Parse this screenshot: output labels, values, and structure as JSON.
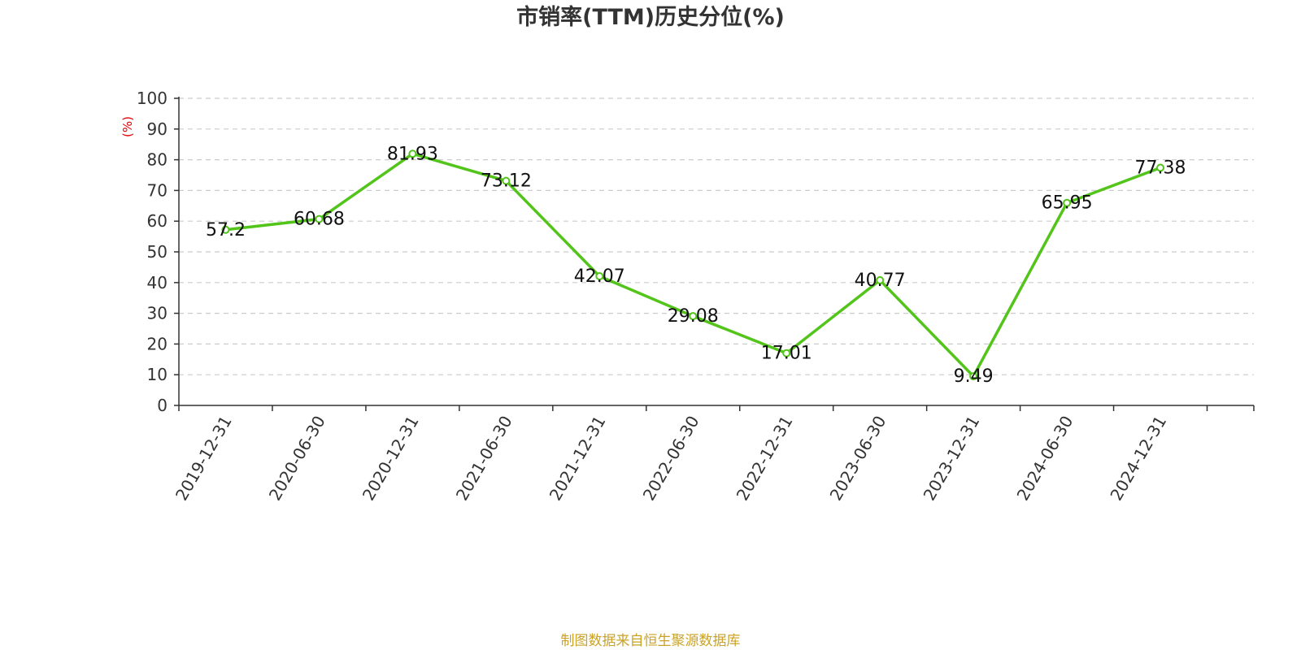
{
  "chart_data": {
    "type": "line",
    "title": "市销率(TTM)历史分位(%)",
    "ylabel": "(%)",
    "xlabel": "",
    "ylim": [
      0,
      100
    ],
    "y_ticks": [
      0,
      10,
      20,
      30,
      40,
      50,
      60,
      70,
      80,
      90,
      100
    ],
    "grid": true,
    "categories": [
      "2019-12-31",
      "2020-06-30",
      "2020-12-31",
      "2021-06-30",
      "2021-12-31",
      "2022-06-30",
      "2022-12-31",
      "2023-06-30",
      "2023-12-31",
      "2024-06-30",
      "2024-12-31"
    ],
    "series": [
      {
        "values": [
          57.2,
          60.68,
          81.93,
          73.12,
          42.07,
          29.08,
          17.01,
          40.77,
          9.49,
          65.95,
          77.38
        ],
        "data_labels": [
          "57.2",
          "60.68",
          "81.93",
          "73.12",
          "42.07",
          "29.08",
          "17.01",
          "40.77",
          "9.49",
          "65.95",
          "77.38"
        ],
        "color": "#52c41a"
      }
    ]
  },
  "footer": {
    "source": "制图数据来自恒生聚源数据库"
  },
  "colors": {
    "line": "#52c41a",
    "ylabel": "#e00000",
    "source": "#c9a227",
    "grid": "#cccccc",
    "axis": "#333333"
  }
}
